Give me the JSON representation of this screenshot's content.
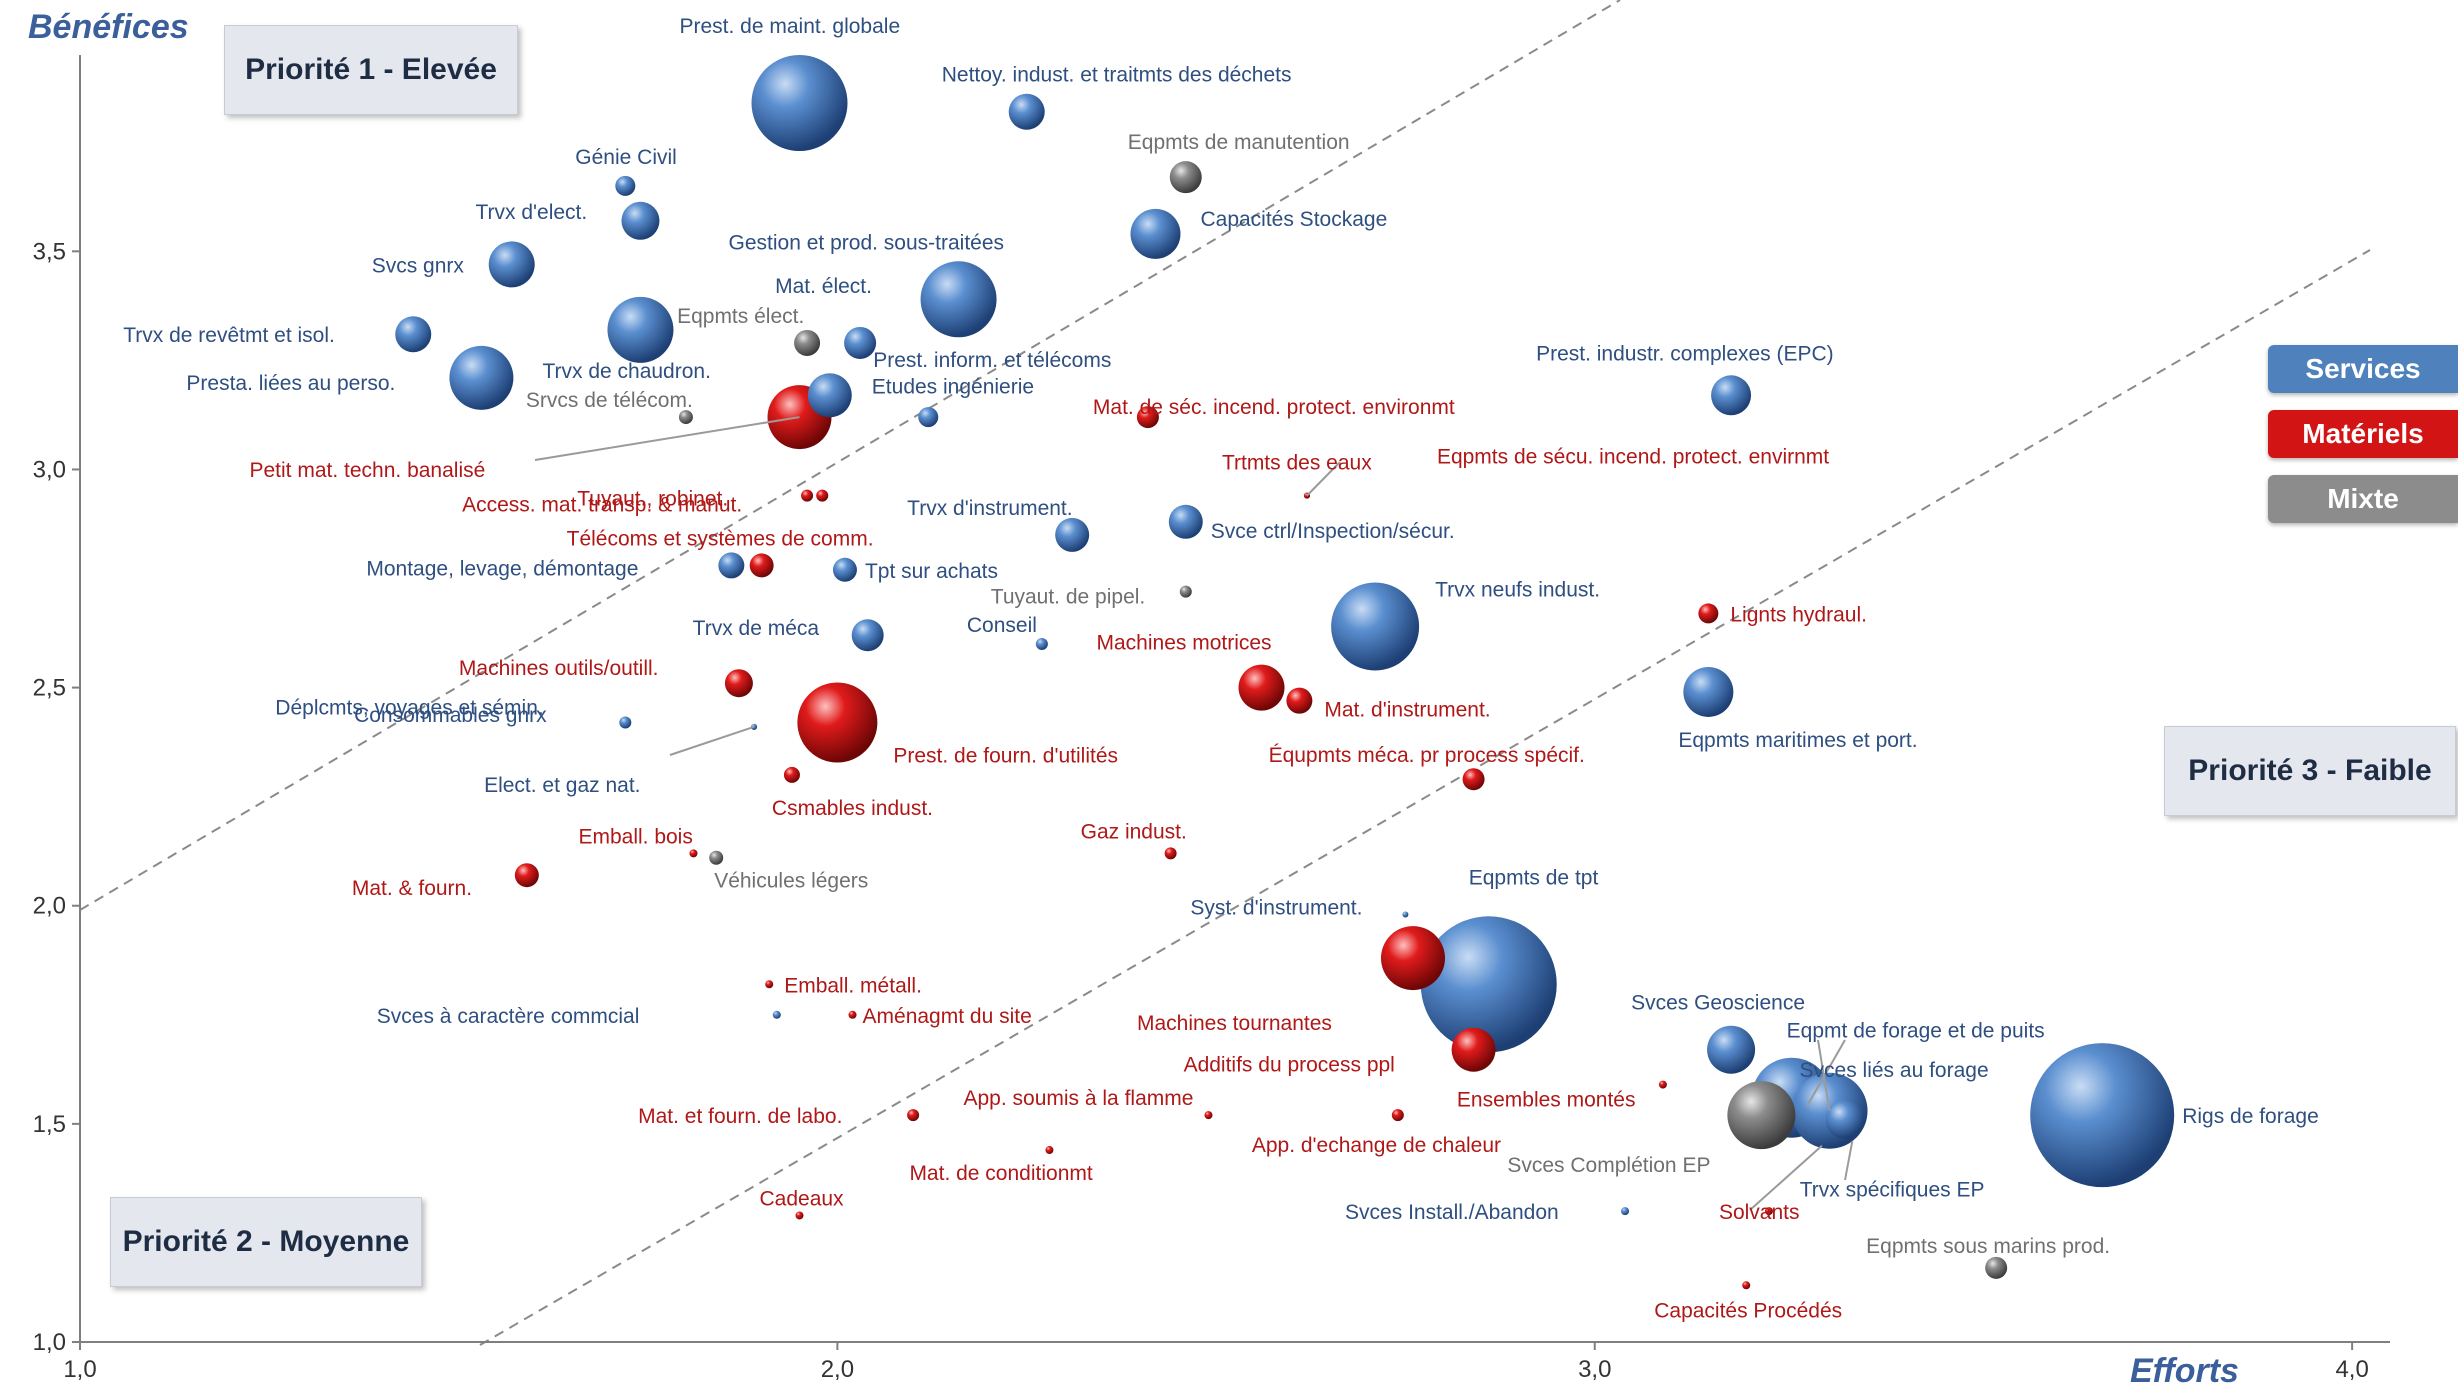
{
  "chart_data": {
    "type": "scatter",
    "xlabel": "Efforts",
    "ylabel": "Bénéfices",
    "xlim": [
      1.0,
      4.05
    ],
    "ylim": [
      1.0,
      3.95
    ],
    "x_ticks": [
      "1,0",
      "2,0",
      "3,0",
      "4,0"
    ],
    "y_ticks": [
      "1,0",
      "1,5",
      "2,0",
      "2,5",
      "3,0",
      "3,5"
    ],
    "x_tick_values": [
      1.0,
      2.0,
      3.0,
      4.0
    ],
    "y_tick_values": [
      1.0,
      1.5,
      2.0,
      2.5,
      3.0,
      3.5
    ],
    "grid": false,
    "zones": [
      {
        "name": "Priorité 1 - Elevée"
      },
      {
        "name": "Priorité 2 - Moyenne"
      },
      {
        "name": "Priorité 3 - Faible"
      }
    ],
    "legend": {
      "placement": "right",
      "items": [
        {
          "label": "Services",
          "color": "#4f81bd"
        },
        {
          "label": "Matériels",
          "color": "#c0504d"
        },
        {
          "label": "Mixte",
          "color": "#8c8c8c"
        }
      ]
    },
    "category_colors": {
      "S": "#4f81bd",
      "M": "#c0504d",
      "X": "#8c8c8c"
    },
    "points": [
      {
        "label": "Prest. de maint. globale",
        "x": 1.95,
        "y": 3.84,
        "r": 48,
        "c": "S"
      },
      {
        "label": "Nettoy. indust. et traitmts des déchets",
        "x": 2.25,
        "y": 3.82,
        "r": 18,
        "c": "S"
      },
      {
        "label": "Génie Civil",
        "x": 1.72,
        "y": 3.65,
        "r": 10,
        "c": "S"
      },
      {
        "label": "Trvx d'elect.",
        "x": 1.74,
        "y": 3.57,
        "r": 19,
        "c": "S"
      },
      {
        "label": "Svcs gnrx",
        "x": 1.57,
        "y": 3.47,
        "r": 23,
        "c": "S"
      },
      {
        "label": "Gestion et prod. sous-traitées",
        "x": 2.16,
        "y": 3.39,
        "r": 38,
        "c": "S"
      },
      {
        "label": "Capacités Stockage",
        "x": 2.42,
        "y": 3.54,
        "r": 25,
        "c": "S"
      },
      {
        "label": "Eqpmts de manutention",
        "x": 2.46,
        "y": 3.67,
        "r": 16,
        "c": "X"
      },
      {
        "label": "Trvx de revêtmt et isol.",
        "x": 1.44,
        "y": 3.31,
        "r": 18,
        "c": "S"
      },
      {
        "label": "Trvx de chaudron.",
        "x": 1.74,
        "y": 3.32,
        "r": 33,
        "c": "S"
      },
      {
        "label": "Eqpmts élect.",
        "x": 1.96,
        "y": 3.29,
        "r": 13,
        "c": "X"
      },
      {
        "label": "Mat. élect.",
        "x": 2.03,
        "y": 3.29,
        "r": 16,
        "c": "S"
      },
      {
        "label": "Presta. liées au perso.",
        "x": 1.53,
        "y": 3.21,
        "r": 32,
        "c": "S"
      },
      {
        "label": "Srvcs de télécom.",
        "x": 1.8,
        "y": 3.12,
        "r": 7,
        "c": "X"
      },
      {
        "label": "Petit mat. techn. banalisé",
        "x": 1.95,
        "y": 3.12,
        "r": 32,
        "c": "M"
      },
      {
        "label": "Etudes ingénierie",
        "x": 1.99,
        "y": 3.17,
        "r": 22,
        "c": "S"
      },
      {
        "label": "Prest. inform. et télécoms",
        "x": 2.12,
        "y": 3.12,
        "r": 10,
        "c": "S"
      },
      {
        "label": "Mat. de séc. incend. protect. environmt",
        "x": 2.41,
        "y": 3.12,
        "r": 11,
        "c": "M"
      },
      {
        "label": "Prest. industr. complexes (EPC)",
        "x": 3.18,
        "y": 3.17,
        "r": 20,
        "c": "S"
      },
      {
        "label": "Tuyaut., robinet.",
        "x": 1.98,
        "y": 2.94,
        "r": 6,
        "c": "M"
      },
      {
        "label": "Trvx d'instrument.",
        "x": 2.31,
        "y": 2.85,
        "r": 17,
        "c": "S"
      },
      {
        "label": "Svce ctrl/Inspection/sécur.",
        "x": 2.46,
        "y": 2.88,
        "r": 17,
        "c": "S"
      },
      {
        "label": "Montage, levage, démontage",
        "x": 1.86,
        "y": 2.78,
        "r": 13,
        "c": "S"
      },
      {
        "label": "Télécoms et systèmes de comm.",
        "x": 1.9,
        "y": 2.78,
        "r": 12,
        "c": "M"
      },
      {
        "label": "Tpt sur achats",
        "x": 2.01,
        "y": 2.77,
        "r": 12,
        "c": "S"
      },
      {
        "label": "Tuyaut. de pipel.",
        "x": 2.46,
        "y": 2.72,
        "r": 6,
        "c": "X"
      },
      {
        "label": "Trvx neufs indust.",
        "x": 2.71,
        "y": 2.64,
        "r": 44,
        "c": "S"
      },
      {
        "label": "Lignts hydraul.",
        "x": 3.15,
        "y": 2.67,
        "r": 10,
        "c": "M"
      },
      {
        "label": "Trvx de méca",
        "x": 2.04,
        "y": 2.62,
        "r": 16,
        "c": "S"
      },
      {
        "label": "Conseil",
        "x": 2.27,
        "y": 2.6,
        "r": 6,
        "c": "S"
      },
      {
        "label": "Machines outils/outill.",
        "x": 1.87,
        "y": 2.51,
        "r": 14,
        "c": "M"
      },
      {
        "label": "Machines motrices",
        "x": 2.56,
        "y": 2.5,
        "r": 23,
        "c": "M"
      },
      {
        "label": "Mat. d'instrument.",
        "x": 2.61,
        "y": 2.47,
        "r": 13,
        "c": "M"
      },
      {
        "label": "Eqpmts maritimes et port.",
        "x": 3.15,
        "y": 2.49,
        "r": 25,
        "c": "S"
      },
      {
        "label": "Déplcmts, voyages et sémin.",
        "x": 1.72,
        "y": 2.42,
        "r": 6,
        "c": "S"
      },
      {
        "label": "Prest. de fourn. d'utilités",
        "x": 2.0,
        "y": 2.42,
        "r": 40,
        "c": "M"
      },
      {
        "label": "Csmables indust.",
        "x": 1.94,
        "y": 2.3,
        "r": 8,
        "c": "M"
      },
      {
        "label": "Équpmts méca. pr process spécif.",
        "x": 2.84,
        "y": 2.29,
        "r": 11,
        "c": "M"
      },
      {
        "label": "Emball. bois",
        "x": 1.81,
        "y": 2.12,
        "r": 4,
        "c": "M"
      },
      {
        "label": "Véhicules légers",
        "x": 1.84,
        "y": 2.11,
        "r": 7,
        "c": "X"
      },
      {
        "label": "Gaz indust.",
        "x": 2.44,
        "y": 2.12,
        "r": 6,
        "c": "M"
      },
      {
        "label": "Mat. & fourn.",
        "x": 1.59,
        "y": 2.07,
        "r": 12,
        "c": "M"
      },
      {
        "label": "Machines tournantes",
        "x": 2.76,
        "y": 1.88,
        "r": 32,
        "c": "M"
      },
      {
        "label": "Eqpmts de tpt",
        "x": 2.86,
        "y": 1.82,
        "r": 68,
        "c": "S"
      },
      {
        "label": "Additifs du process ppl",
        "x": 2.84,
        "y": 1.67,
        "r": 22,
        "c": "M"
      },
      {
        "label": "Emball. métall.",
        "x": 1.91,
        "y": 1.82,
        "r": 4,
        "c": "M"
      },
      {
        "label": "Svces à caractère commcial",
        "x": 1.92,
        "y": 1.75,
        "r": 4,
        "c": "S"
      },
      {
        "label": "Aménagmt du site",
        "x": 2.02,
        "y": 1.75,
        "r": 4,
        "c": "M"
      },
      {
        "label": "Svces Geoscience",
        "x": 3.18,
        "y": 1.67,
        "r": 24,
        "c": "S"
      },
      {
        "label": "Eqpmt de forage et de puits",
        "x": 3.26,
        "y": 1.56,
        "r": 40,
        "c": "S"
      },
      {
        "label": "Svces liés au forage",
        "x": 3.31,
        "y": 1.53,
        "r": 38,
        "c": "S"
      },
      {
        "label": "Svces Complétion EP",
        "x": 3.22,
        "y": 1.52,
        "r": 34,
        "c": "X"
      },
      {
        "label": "Trvx spécifiques EP",
        "x": 3.33,
        "y": 1.51,
        "r": 19,
        "c": "S"
      },
      {
        "label": "Rigs de forage",
        "x": 3.67,
        "y": 1.52,
        "r": 72,
        "c": "S"
      },
      {
        "label": "Ensembles montés",
        "x": 3.09,
        "y": 1.59,
        "r": 4,
        "c": "M"
      },
      {
        "label": "Mat. et fourn. de labo.",
        "x": 2.1,
        "y": 1.52,
        "r": 6,
        "c": "M"
      },
      {
        "label": "App. soumis à la flamme",
        "x": 2.49,
        "y": 1.52,
        "r": 4,
        "c": "M"
      },
      {
        "label": "App. d'echange de chaleur",
        "x": 2.74,
        "y": 1.52,
        "r": 6,
        "c": "M"
      },
      {
        "label": "Mat. de conditionmt",
        "x": 2.28,
        "y": 1.44,
        "r": 4,
        "c": "M"
      },
      {
        "label": "Svces Install./Abandon",
        "x": 3.04,
        "y": 1.3,
        "r": 4,
        "c": "S"
      },
      {
        "label": "Solvants",
        "x": 3.23,
        "y": 1.3,
        "r": 4,
        "c": "M"
      },
      {
        "label": "Cadeaux",
        "x": 1.95,
        "y": 1.29,
        "r": 4,
        "c": "M"
      },
      {
        "label": "Eqpmts sous marins prod.",
        "x": 3.53,
        "y": 1.17,
        "r": 11,
        "c": "X"
      },
      {
        "label": "Capacités Procédés",
        "x": 3.2,
        "y": 1.13,
        "r": 4,
        "c": "M"
      },
      {
        "label": "Access. mat. transp. & manut.",
        "x": 1.96,
        "y": 2.94,
        "r": 6,
        "c": "M"
      },
      {
        "label": "Consommables gnrx",
        "x": 1.89,
        "y": 2.41,
        "r": 3,
        "c": "S"
      },
      {
        "label": "Elect. et gaz nat.",
        "x": 1.89,
        "y": 2.41,
        "r": 3,
        "c": "S"
      },
      {
        "label": "Trtmts des eaux",
        "x": 2.62,
        "y": 2.94,
        "r": 3,
        "c": "M"
      },
      {
        "label": "Eqpmts de sécu. incend. protect. envirnmt",
        "x": 2.62,
        "y": 2.94,
        "r": 3,
        "c": "M"
      },
      {
        "label": "Syst. d'instrument.",
        "x": 2.75,
        "y": 1.98,
        "r": 3,
        "c": "S"
      }
    ]
  }
}
